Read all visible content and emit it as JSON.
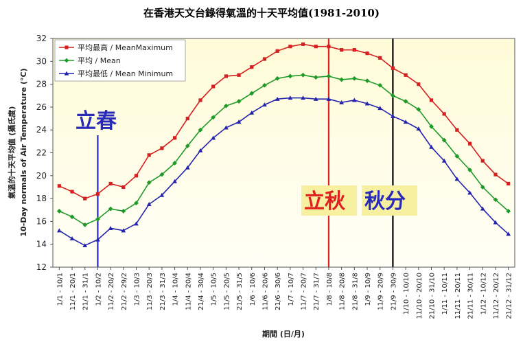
{
  "chart_data": {
    "type": "line",
    "title": "在香港天文台錄得氣溫的十天平均值(1981-2010)",
    "ylabel_line1": "氣溫的十天平均值 (攝氏度)",
    "ylabel_line2": "10-Day normals of Air Temperature (°C)",
    "xlabel": "期間 (日/月)",
    "ylim": [
      12,
      32
    ],
    "yticks": [
      12,
      14,
      16,
      18,
      20,
      22,
      24,
      26,
      28,
      30,
      32
    ],
    "grid": false,
    "legend_position": "top-left",
    "categories": [
      "1/1 - 10/1",
      "11/1 - 20/1",
      "21/1 - 31/1",
      "1/2 - 10/2",
      "11/2 - 20/2",
      "21/2 - 29/2",
      "1/3 - 10/3",
      "11/3 - 20/3",
      "21/3 - 31/3",
      "1/4 - 10/4",
      "11/4 - 20/4",
      "21/4 - 30/4",
      "1/5 - 10/5",
      "11/5 - 20/5",
      "21/5 - 31/5",
      "1/6 - 10/6",
      "11/6 - 20/6",
      "21/6 - 30/6",
      "1/7 - 10/7",
      "11/7 - 20/7",
      "21/7 - 31/7",
      "1/8 - 10/8",
      "11/8 - 20/8",
      "21/8 - 31/8",
      "1/9 - 10/9",
      "11/9 - 20/9",
      "21/9 - 30/9",
      "1/10 - 10/10",
      "11/10 - 20/10",
      "21/10 - 31/10",
      "1/11 - 10/11",
      "11/11 - 20/11",
      "21/11 - 30/11",
      "1/12 - 10/12",
      "11/12 - 20/12",
      "21/12 - 31/12"
    ],
    "series": [
      {
        "name": "平均最高 / MeanMaximum",
        "color": "#d42020",
        "values": [
          19.1,
          18.6,
          18.0,
          18.4,
          19.3,
          19.0,
          20.0,
          21.8,
          22.4,
          23.3,
          25.0,
          26.6,
          27.8,
          28.7,
          28.8,
          29.5,
          30.2,
          30.9,
          31.3,
          31.5,
          31.3,
          31.3,
          31.0,
          31.0,
          30.7,
          30.3,
          29.4,
          28.8,
          28.0,
          26.6,
          25.4,
          24.0,
          22.8,
          21.3,
          20.1,
          19.3
        ]
      },
      {
        "name": "平均 / Mean",
        "color": "#1e9a28",
        "values": [
          16.9,
          16.4,
          15.7,
          16.2,
          17.1,
          16.9,
          17.6,
          19.4,
          20.1,
          21.1,
          22.6,
          24.0,
          25.1,
          26.1,
          26.5,
          27.2,
          27.9,
          28.5,
          28.7,
          28.8,
          28.6,
          28.7,
          28.4,
          28.5,
          28.3,
          27.9,
          27.0,
          26.5,
          25.8,
          24.3,
          23.1,
          21.7,
          20.5,
          19.0,
          17.9,
          16.9
        ]
      },
      {
        "name": "平均最低 / Mean Minimum",
        "color": "#2424b0",
        "values": [
          15.2,
          14.5,
          13.9,
          14.4,
          15.4,
          15.2,
          15.8,
          17.5,
          18.3,
          19.5,
          20.7,
          22.2,
          23.3,
          24.2,
          24.7,
          25.5,
          26.2,
          26.7,
          26.8,
          26.8,
          26.7,
          26.7,
          26.4,
          26.6,
          26.3,
          25.9,
          25.2,
          24.7,
          24.1,
          22.5,
          21.3,
          19.7,
          18.5,
          17.1,
          15.9,
          14.9
        ]
      }
    ],
    "annotations": [
      {
        "text": "立春",
        "category_index": 3,
        "color": "#2a2ab8",
        "line_color": "#2a2ab8",
        "background": ""
      },
      {
        "text": "立秋",
        "category_index": 21,
        "color": "#e02020",
        "line_color": "#e02020",
        "background": "#f7f0a0"
      },
      {
        "text": "秋分",
        "category_index": 26,
        "color": "#2a2ab8",
        "line_color": "#000000",
        "background": "#f7f0a0"
      }
    ]
  }
}
